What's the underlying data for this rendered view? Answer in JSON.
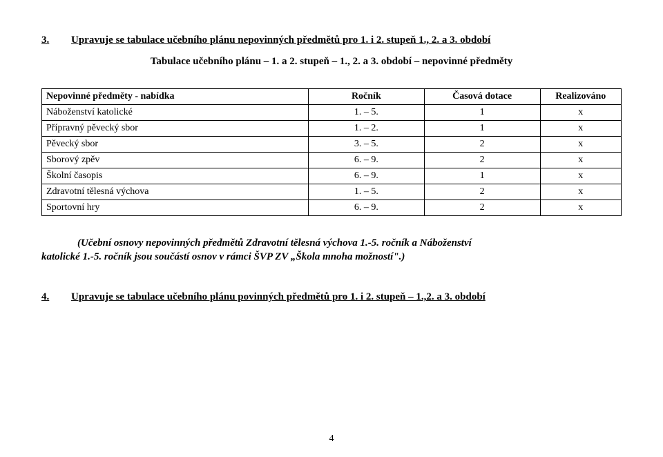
{
  "heading": {
    "num": "3.",
    "text": "Upravuje se tabulace učebního plánu nepovinných předmětů pro 1. i 2. stupeň 1., 2. a 3. období"
  },
  "subtitle": "Tabulace učebního plánu – 1. a 2. stupeň – 1., 2. a 3. období – nepovinné předměty",
  "table": {
    "headers": [
      "Nepovinné předměty - nabídka",
      "Ročník",
      "Časová dotace",
      "Realizováno"
    ],
    "col_widths": [
      "46%",
      "20%",
      "20%",
      "14%"
    ],
    "rows": [
      [
        "Náboženství katolické",
        "1. – 5.",
        "1",
        "x"
      ],
      [
        "Přípravný pěvecký sbor",
        "1. – 2.",
        "1",
        "x"
      ],
      [
        "Pěvecký sbor",
        "3. – 5.",
        "2",
        "x"
      ],
      [
        "Sborový zpěv",
        "6. – 9.",
        "2",
        "x"
      ],
      [
        "Školní časopis",
        "6. – 9.",
        "1",
        "x"
      ],
      [
        "Zdravotní tělesná výchova",
        "1. – 5.",
        "2",
        "x"
      ],
      [
        "Sportovní hry",
        "6. – 9.",
        "2",
        "x"
      ]
    ]
  },
  "paragraph": {
    "line1": "(Učební osnovy nepovinných předmětů Zdravotní tělesná výchova 1.-5. ročník a Náboženství",
    "line2_bold": "katolické 1.-5. ročník",
    "line2_rest": " jsou součástí osnov v rámci ŠVP ZV „Škola mnoha možností\".)"
  },
  "heading2": {
    "num": "4.",
    "text": "Upravuje se tabulace učebního plánu  povinných předmětů pro 1. i  2. stupeň – 1.,2. a 3. období"
  },
  "page_number": "4"
}
